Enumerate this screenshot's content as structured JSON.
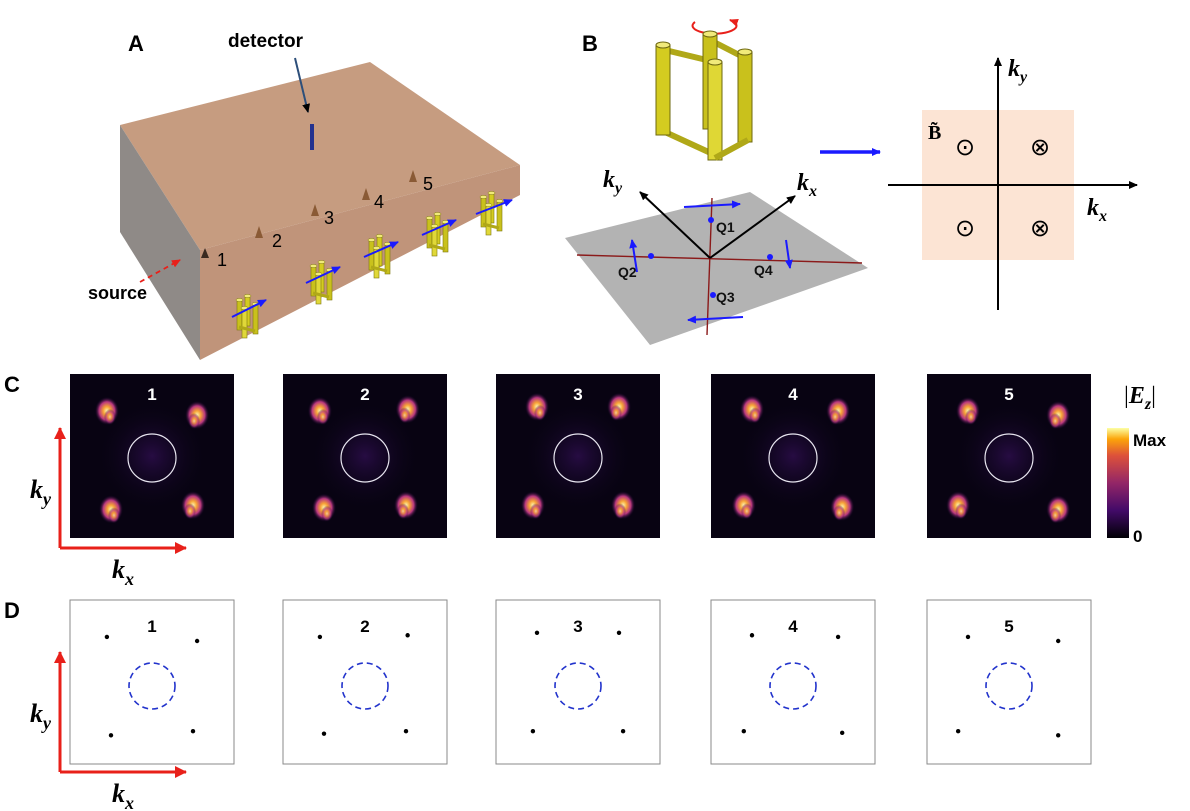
{
  "panels": {
    "a": {
      "label": "A",
      "detector_label": "detector",
      "source_label": "source",
      "position_labels": [
        "1",
        "2",
        "3",
        "4",
        "5"
      ]
    },
    "b": {
      "label": "B",
      "q_labels": [
        "Q1",
        "Q2",
        "Q3",
        "Q4"
      ],
      "axis_kx": "k",
      "axis_kx_sub": "x",
      "axis_ky": "k",
      "axis_ky_sub": "y",
      "b_tilde_label": "B̃",
      "dot_symbol": "⊙",
      "cross_symbol": "⊗"
    },
    "c": {
      "label": "C",
      "frame_labels": [
        "1",
        "2",
        "3",
        "4",
        "5"
      ],
      "axis_kx": "k",
      "axis_kx_sub": "x",
      "axis_ky": "k",
      "axis_ky_sub": "y",
      "colorbar_title_bar": "|",
      "colorbar_title_E": "E",
      "colorbar_title_sub": "z",
      "colorbar_max": "Max",
      "colorbar_min": "0"
    },
    "d": {
      "label": "D",
      "frame_labels": [
        "1",
        "2",
        "3",
        "4",
        "5"
      ],
      "axis_kx": "k",
      "axis_kx_sub": "x",
      "axis_ky": "k",
      "axis_ky_sub": "y"
    }
  },
  "colors": {
    "block_top": "#c69c80",
    "block_side": "#8f8a87",
    "arrow_blue": "#1a1aff",
    "arrow_red": "#e8201a",
    "shading": "#fce4d4",
    "rod_yellow": "#d4cc20",
    "circle_dashed": "#2233cc"
  },
  "chart_data": [
    {
      "type": "scatter",
      "panel": "D1",
      "points": [
        [
          -0.55,
          0.55
        ],
        [
          0.55,
          0.5
        ],
        [
          -0.5,
          -0.65
        ],
        [
          0.5,
          -0.6
        ]
      ]
    },
    {
      "type": "scatter",
      "panel": "D2",
      "points": [
        [
          -0.55,
          0.55
        ],
        [
          0.52,
          0.57
        ],
        [
          -0.5,
          -0.63
        ],
        [
          0.5,
          -0.6
        ]
      ]
    },
    {
      "type": "scatter",
      "panel": "D3",
      "points": [
        [
          -0.5,
          0.6
        ],
        [
          0.5,
          0.6
        ],
        [
          -0.55,
          -0.6
        ],
        [
          0.55,
          -0.6
        ]
      ]
    },
    {
      "type": "scatter",
      "panel": "D4",
      "points": [
        [
          -0.5,
          0.57
        ],
        [
          0.55,
          0.55
        ],
        [
          -0.6,
          -0.6
        ],
        [
          0.6,
          -0.62
        ]
      ]
    },
    {
      "type": "scatter",
      "panel": "D5",
      "points": [
        [
          -0.5,
          0.55
        ],
        [
          0.6,
          0.5
        ],
        [
          -0.62,
          -0.6
        ],
        [
          0.6,
          -0.65
        ]
      ]
    }
  ]
}
